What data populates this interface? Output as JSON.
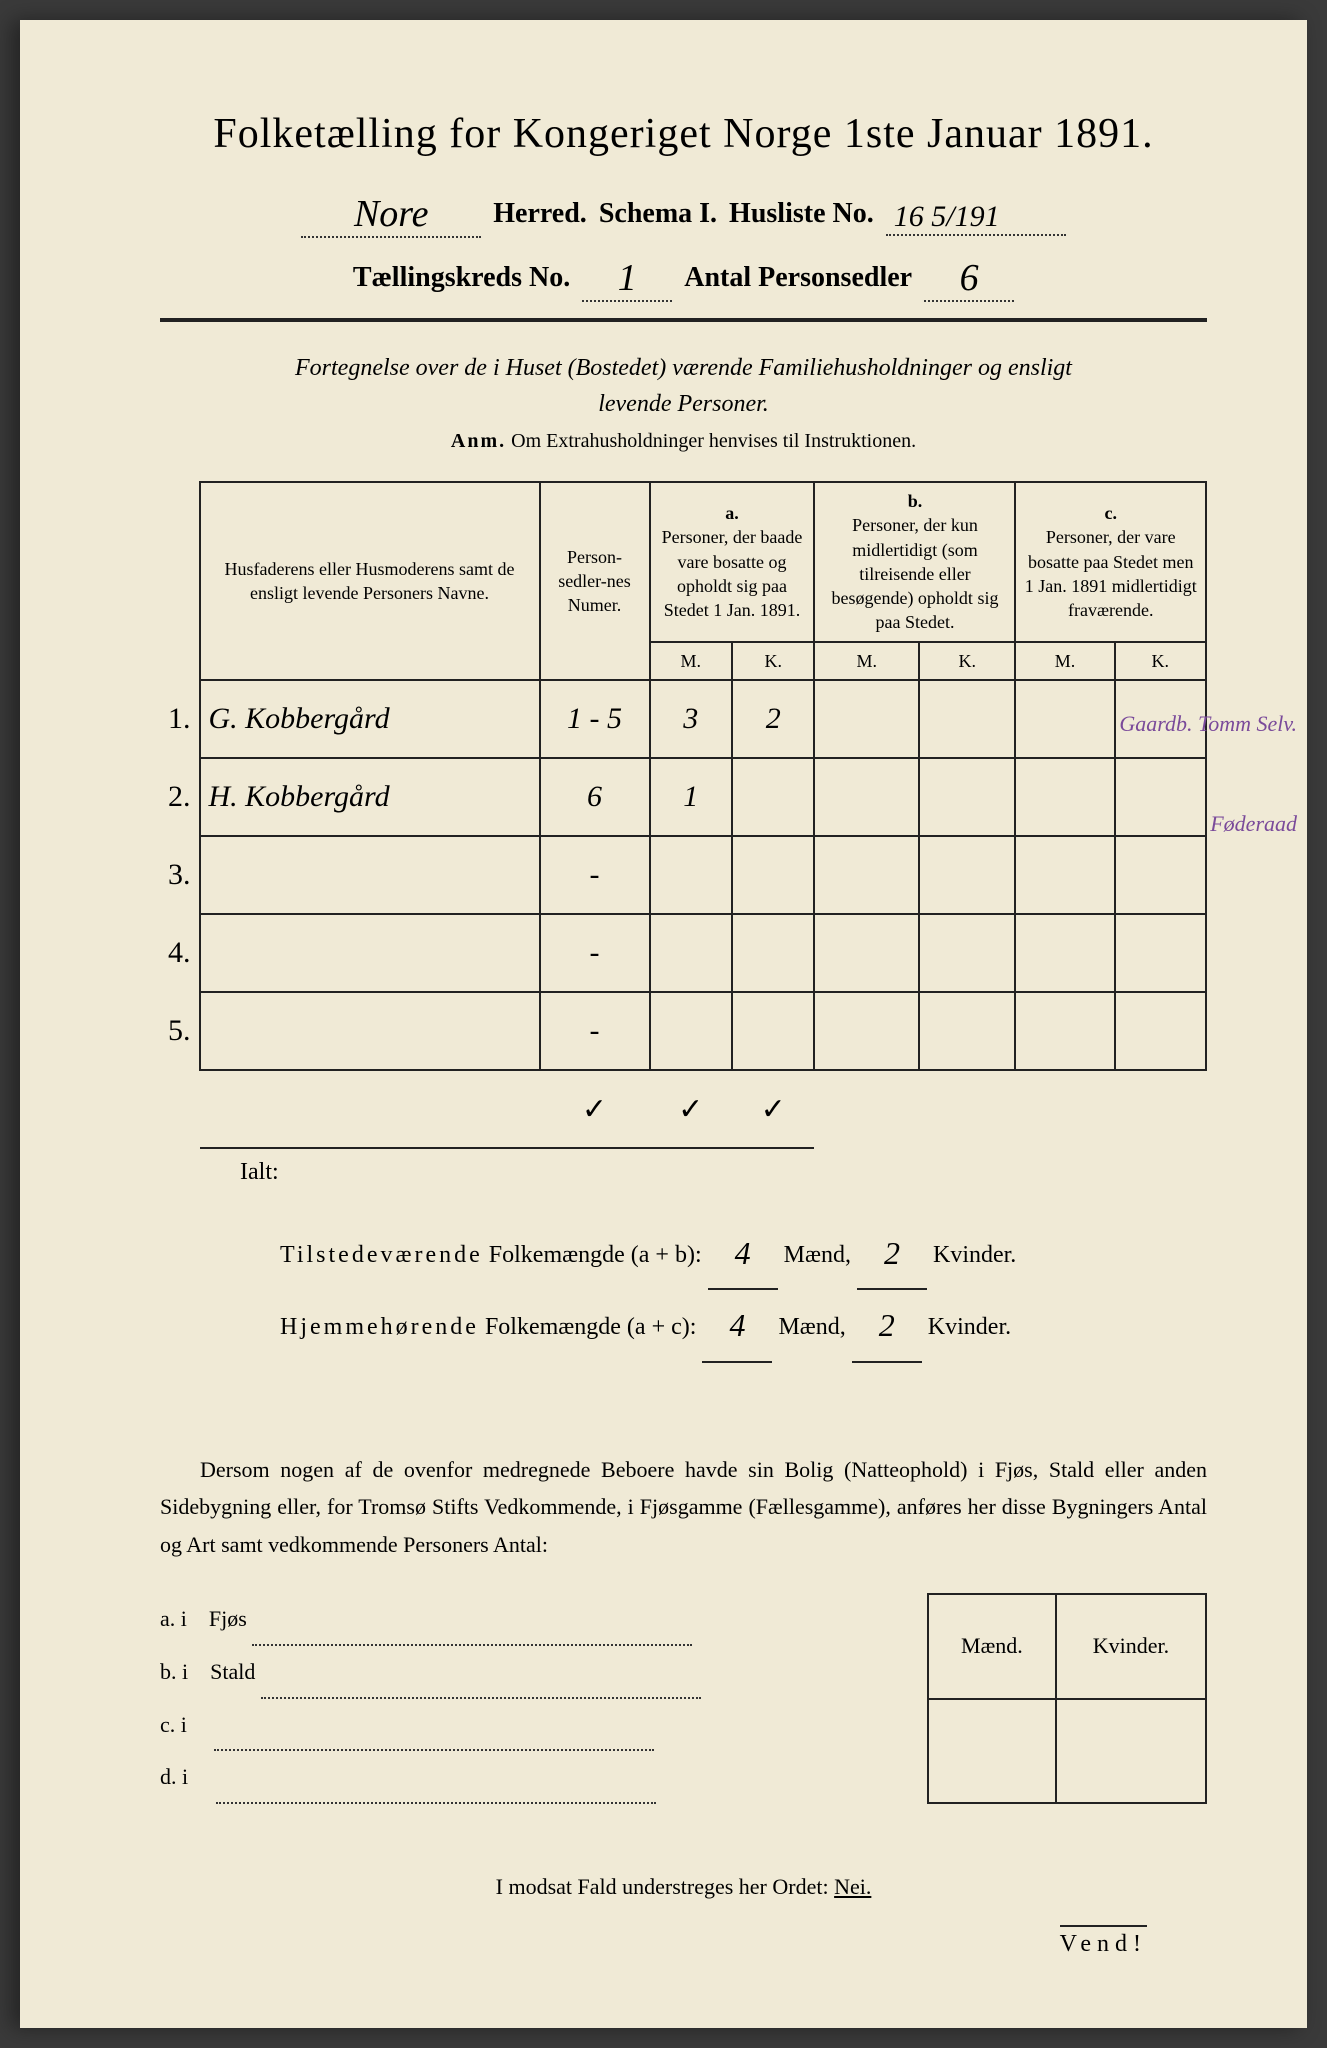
{
  "title": "Folketælling for Kongeriget Norge 1ste Januar 1891.",
  "header": {
    "herred_value": "Nore",
    "herred_label": "Herred.",
    "schema_label": "Schema I.",
    "husliste_label": "Husliste No.",
    "husliste_value": "16 5/191",
    "kreds_label": "Tællingskreds No.",
    "kreds_value": "1",
    "antal_label": "Antal Personsedler",
    "antal_value": "6"
  },
  "subtitle_line1": "Fortegnelse over de i Huset (Bostedet) værende Familiehusholdninger og ensligt",
  "subtitle_line2": "levende Personer.",
  "anm_label": "Anm.",
  "anm_text": "Om Extrahusholdninger henvises til Instruktionen.",
  "table": {
    "col_name": "Husfaderens eller Husmoderens samt de ensligt levende Personers Navne.",
    "col_num": "Person-sedler-nes Numer.",
    "col_a_top": "a.",
    "col_a": "Personer, der baade vare bosatte og opholdt sig paa Stedet 1 Jan. 1891.",
    "col_b_top": "b.",
    "col_b": "Personer, der kun midlertidigt (som tilreisende eller besøgende) opholdt sig paa Stedet.",
    "col_c_top": "c.",
    "col_c": "Personer, der vare bosatte paa Stedet men 1 Jan. 1891 midlertidigt fraværende.",
    "m": "M.",
    "k": "K.",
    "rows": [
      {
        "n": "1.",
        "name": "G. Kobbergård",
        "num": "1 - 5",
        "a_m": "3",
        "a_k": "2",
        "b_m": "",
        "b_k": "",
        "c_m": "",
        "c_k": "",
        "note": "Gaardb.\nTomm\nSelv."
      },
      {
        "n": "2.",
        "name": "H. Kobbergård",
        "num": "6",
        "a_m": "1",
        "a_k": "",
        "b_m": "",
        "b_k": "",
        "c_m": "",
        "c_k": "",
        "note": "Føderaad"
      },
      {
        "n": "3.",
        "name": "",
        "num": "-",
        "a_m": "",
        "a_k": "",
        "b_m": "",
        "b_k": "",
        "c_m": "",
        "c_k": "",
        "note": ""
      },
      {
        "n": "4.",
        "name": "",
        "num": "-",
        "a_m": "",
        "a_k": "",
        "b_m": "",
        "b_k": "",
        "c_m": "",
        "c_k": "",
        "note": ""
      },
      {
        "n": "5.",
        "name": "",
        "num": "-",
        "a_m": "",
        "a_k": "",
        "b_m": "",
        "b_k": "",
        "c_m": "",
        "c_k": "",
        "note": ""
      }
    ],
    "ticks": {
      "num": "✓",
      "a_m": "✓",
      "a_k": "✓"
    }
  },
  "ialt": {
    "label": "Ialt:",
    "line1_label": "Tilstedeværende Folkemængde (a + b):",
    "line2_label": "Hjemmehørende Folkemængde (a + c):",
    "maend": "Mænd,",
    "kvinder": "Kvinder.",
    "line1_m": "4",
    "line1_k": "2",
    "line2_m": "4",
    "line2_k": "2",
    "tilstede_spaced": "Tilstedeværende",
    "hjemme_spaced": "Hjemmehørende"
  },
  "paragraph": "Dersom nogen af de ovenfor medregnede Beboere havde sin Bolig (Natteophold) i Fjøs, Stald eller anden Sidebygning eller, for Tromsø Stifts Vedkommende, i Fjøsgamme (Fællesgamme), anføres her disse Bygningers Antal og Art samt vedkommende Personers Antal:",
  "side": {
    "rows": [
      {
        "label": "a.  i",
        "type": "Fjøs"
      },
      {
        "label": "b.  i",
        "type": "Stald"
      },
      {
        "label": "c.  i",
        "type": ""
      },
      {
        "label": "d.  i",
        "type": ""
      }
    ],
    "maend": "Mænd.",
    "kvinder": "Kvinder."
  },
  "nei": "I modsat Fald understreges her Ordet: ",
  "nei_word": "Nei.",
  "vend": "Vend!",
  "colors": {
    "paper": "#f0ead6",
    "ink": "#222222",
    "purple_note": "#7a4a9a"
  }
}
